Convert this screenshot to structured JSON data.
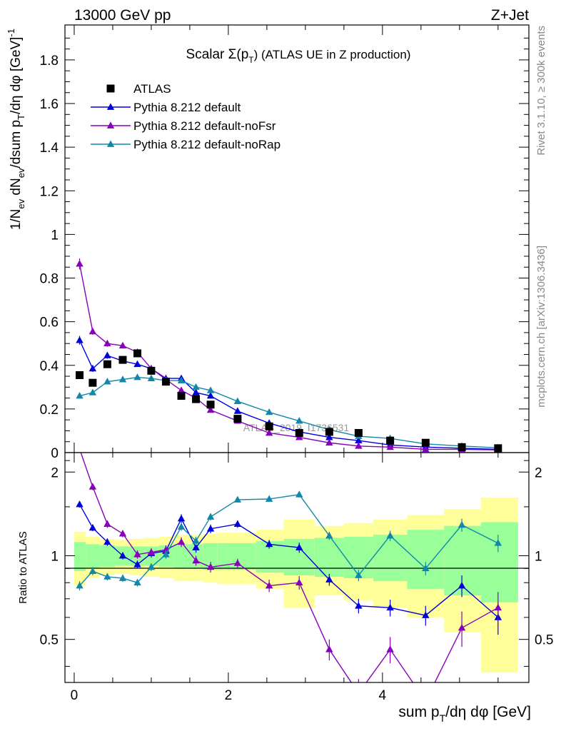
{
  "header": {
    "left_label": "13000 GeV pp",
    "right_label": "Z+Jet"
  },
  "side_labels": {
    "rivet": "Rivet 3.1.10, ≥ 300k events",
    "mcplots": "mcplots.cern.ch [arXiv:1306.3436]"
  },
  "watermark": "ATLAS_2019_I1736531",
  "chart_data": [
    {
      "id": "main",
      "type": "scatter",
      "title_prefix": "Scalar Σ(p",
      "title_sub": "T",
      "title_suffix": ") (ATLAS UE in Z production)",
      "ylabel": "1/N_ev dN_ev/dsum p_T/dη dφ [GeV]^-1",
      "ylabel_parts": {
        "a": "1/N",
        "a_sub": "ev",
        "b": " dN",
        "b_sub": "ev",
        "c": "/dsum p",
        "c_sub": "T",
        "d": "/dη dφ  [GeV]",
        "d_sup": "-1"
      },
      "xlim": [
        -0.12,
        5.9
      ],
      "ylim": [
        0,
        1.96
      ],
      "x_ticks": [
        "0",
        "2",
        "4"
      ],
      "y_ticks": [
        "0",
        "0.2",
        "0.4",
        "0.6",
        "0.8",
        "1",
        "1.2",
        "1.4",
        "1.6",
        "1.8"
      ],
      "legend_position": "top-left",
      "series": [
        {
          "name": "ATLAS",
          "marker": "square",
          "color": "#000000",
          "x": [
            0.07,
            0.24,
            0.43,
            0.63,
            0.82,
            1.0,
            1.19,
            1.39,
            1.58,
            1.77,
            2.12,
            2.53,
            2.92,
            3.31,
            3.69,
            4.1,
            4.56,
            5.03,
            5.5
          ],
          "y": [
            0.355,
            0.32,
            0.405,
            0.425,
            0.455,
            0.375,
            0.325,
            0.26,
            0.245,
            0.22,
            0.155,
            0.12,
            0.09,
            0.095,
            0.09,
            0.055,
            0.045,
            0.025,
            0.02
          ]
        },
        {
          "name": "Pythia 8.212 default",
          "marker": "triangle",
          "color": "#0000dd",
          "x": [
            0.07,
            0.24,
            0.43,
            0.63,
            0.82,
            1.0,
            1.19,
            1.39,
            1.58,
            1.77,
            2.12,
            2.53,
            2.92,
            3.31,
            3.69,
            4.1,
            4.56,
            5.03,
            5.5
          ],
          "y": [
            0.515,
            0.385,
            0.445,
            0.42,
            0.405,
            0.385,
            0.34,
            0.34,
            0.275,
            0.26,
            0.19,
            0.135,
            0.095,
            0.07,
            0.055,
            0.035,
            0.025,
            0.02,
            0.015
          ],
          "err": [
            0.02,
            0.015,
            0.015,
            0.012,
            0.012,
            0.012,
            0.01,
            0.012,
            0.01,
            0.01,
            0.008,
            0.006,
            0.005,
            0.004,
            0.003,
            0.003,
            0.002,
            0.002,
            0.002
          ]
        },
        {
          "name": "Pythia 8.212 default-noFsr",
          "marker": "triangle",
          "color": "#8800bb",
          "x": [
            0.07,
            0.24,
            0.43,
            0.63,
            0.82,
            1.0,
            1.19,
            1.39,
            1.58,
            1.77,
            2.12,
            2.53,
            2.92,
            3.31,
            3.69,
            4.1,
            4.56,
            5.03,
            5.5
          ],
          "y": [
            0.865,
            0.555,
            0.5,
            0.49,
            0.46,
            0.385,
            0.335,
            0.285,
            0.25,
            0.195,
            0.145,
            0.09,
            0.07,
            0.045,
            0.03,
            0.025,
            0.015,
            0.015,
            0.012
          ],
          "err": [
            0.025,
            0.015,
            0.015,
            0.012,
            0.012,
            0.012,
            0.01,
            0.01,
            0.01,
            0.008,
            0.006,
            0.005,
            0.004,
            0.003,
            0.003,
            0.002,
            0.002,
            0.002,
            0.002
          ]
        },
        {
          "name": "Pythia 8.212 default-noRap",
          "marker": "triangle",
          "color": "#1188aa",
          "x": [
            0.07,
            0.24,
            0.43,
            0.63,
            0.82,
            1.0,
            1.19,
            1.39,
            1.58,
            1.77,
            2.12,
            2.53,
            2.92,
            3.31,
            3.69,
            4.1,
            4.56,
            5.03,
            5.5
          ],
          "y": [
            0.26,
            0.275,
            0.325,
            0.335,
            0.345,
            0.34,
            0.33,
            0.33,
            0.3,
            0.285,
            0.235,
            0.185,
            0.145,
            0.105,
            0.075,
            0.065,
            0.04,
            0.03,
            0.022
          ],
          "err": [
            0.01,
            0.01,
            0.01,
            0.01,
            0.01,
            0.01,
            0.01,
            0.01,
            0.01,
            0.008,
            0.007,
            0.006,
            0.005,
            0.004,
            0.003,
            0.003,
            0.002,
            0.002,
            0.002
          ]
        }
      ]
    },
    {
      "id": "ratio",
      "type": "scatter",
      "ylabel": "Ratio to ATLAS",
      "xlabel_parts": {
        "a": "sum p",
        "a_sub": "T",
        "b": "/dη dφ [GeV]"
      },
      "xlim": [
        -0.12,
        5.9
      ],
      "ylim": [
        0.35,
        2.35
      ],
      "x_ticks": [
        "0",
        "2",
        "4"
      ],
      "y_ticks": [
        "0.5",
        "1",
        "2"
      ],
      "bin_edges": [
        0.0,
        0.15,
        0.33,
        0.53,
        0.72,
        0.91,
        1.1,
        1.29,
        1.48,
        1.67,
        1.86,
        2.36,
        2.72,
        3.12,
        3.5,
        3.88,
        4.32,
        4.8,
        5.28,
        5.76
      ],
      "band_stat_half": [
        0.12,
        0.1,
        0.09,
        0.08,
        0.08,
        0.08,
        0.09,
        0.1,
        0.1,
        0.11,
        0.11,
        0.13,
        0.15,
        0.16,
        0.17,
        0.19,
        0.24,
        0.28,
        0.32
      ],
      "band_total_half": [
        0.22,
        0.17,
        0.15,
        0.14,
        0.15,
        0.16,
        0.17,
        0.19,
        0.19,
        0.2,
        0.21,
        0.24,
        0.35,
        0.28,
        0.31,
        0.35,
        0.4,
        0.47,
        0.62
      ],
      "series": [
        {
          "name": "Pythia 8.212 default",
          "color": "#0000dd",
          "x": [
            0.07,
            0.24,
            0.43,
            0.63,
            0.82,
            1.0,
            1.19,
            1.39,
            1.58,
            1.77,
            2.12,
            2.53,
            2.92,
            3.31,
            3.69,
            4.1,
            4.56,
            5.03,
            5.5
          ],
          "y": [
            1.53,
            1.26,
            1.12,
            1.0,
            0.93,
            1.02,
            1.04,
            1.36,
            1.07,
            1.25,
            1.3,
            1.1,
            1.07,
            0.82,
            0.66,
            0.65,
            0.61,
            0.78,
            0.6
          ],
          "err": [
            0.04,
            0.035,
            0.035,
            0.03,
            0.03,
            0.035,
            0.04,
            0.05,
            0.045,
            0.045,
            0.04,
            0.04,
            0.045,
            0.04,
            0.04,
            0.045,
            0.05,
            0.07,
            0.08
          ]
        },
        {
          "name": "Pythia 8.212 default-noFsr",
          "color": "#8800bb",
          "x": [
            0.07,
            0.24,
            0.43,
            0.63,
            0.82,
            1.0,
            1.19,
            1.39,
            1.58,
            1.77,
            2.12,
            2.53,
            2.92,
            3.31,
            3.69,
            4.1,
            4.56,
            5.03,
            5.5
          ],
          "y": [
            2.42,
            1.77,
            1.3,
            1.2,
            1.01,
            1.03,
            1.05,
            1.12,
            0.96,
            0.91,
            0.94,
            0.78,
            0.8,
            0.46,
            0.32,
            0.46,
            0.3,
            0.55,
            0.65
          ],
          "err": [
            0.06,
            0.05,
            0.04,
            0.035,
            0.035,
            0.035,
            0.04,
            0.045,
            0.04,
            0.04,
            0.035,
            0.04,
            0.045,
            0.04,
            0.04,
            0.05,
            0.05,
            0.08,
            0.09
          ]
        },
        {
          "name": "Pythia 8.212 default-noRap",
          "color": "#1188aa",
          "x": [
            0.07,
            0.24,
            0.43,
            0.63,
            0.82,
            1.0,
            1.19,
            1.39,
            1.58,
            1.77,
            2.12,
            2.53,
            2.92,
            3.31,
            3.69,
            4.1,
            4.56,
            5.03,
            5.5
          ],
          "y": [
            0.78,
            0.88,
            0.84,
            0.83,
            0.8,
            0.91,
            1.01,
            1.27,
            1.13,
            1.38,
            1.59,
            1.6,
            1.66,
            1.18,
            0.85,
            1.18,
            0.9,
            1.29,
            1.11
          ],
          "err": [
            0.03,
            0.03,
            0.025,
            0.025,
            0.025,
            0.03,
            0.035,
            0.04,
            0.04,
            0.04,
            0.035,
            0.035,
            0.04,
            0.04,
            0.04,
            0.05,
            0.05,
            0.07,
            0.08
          ]
        }
      ]
    }
  ]
}
